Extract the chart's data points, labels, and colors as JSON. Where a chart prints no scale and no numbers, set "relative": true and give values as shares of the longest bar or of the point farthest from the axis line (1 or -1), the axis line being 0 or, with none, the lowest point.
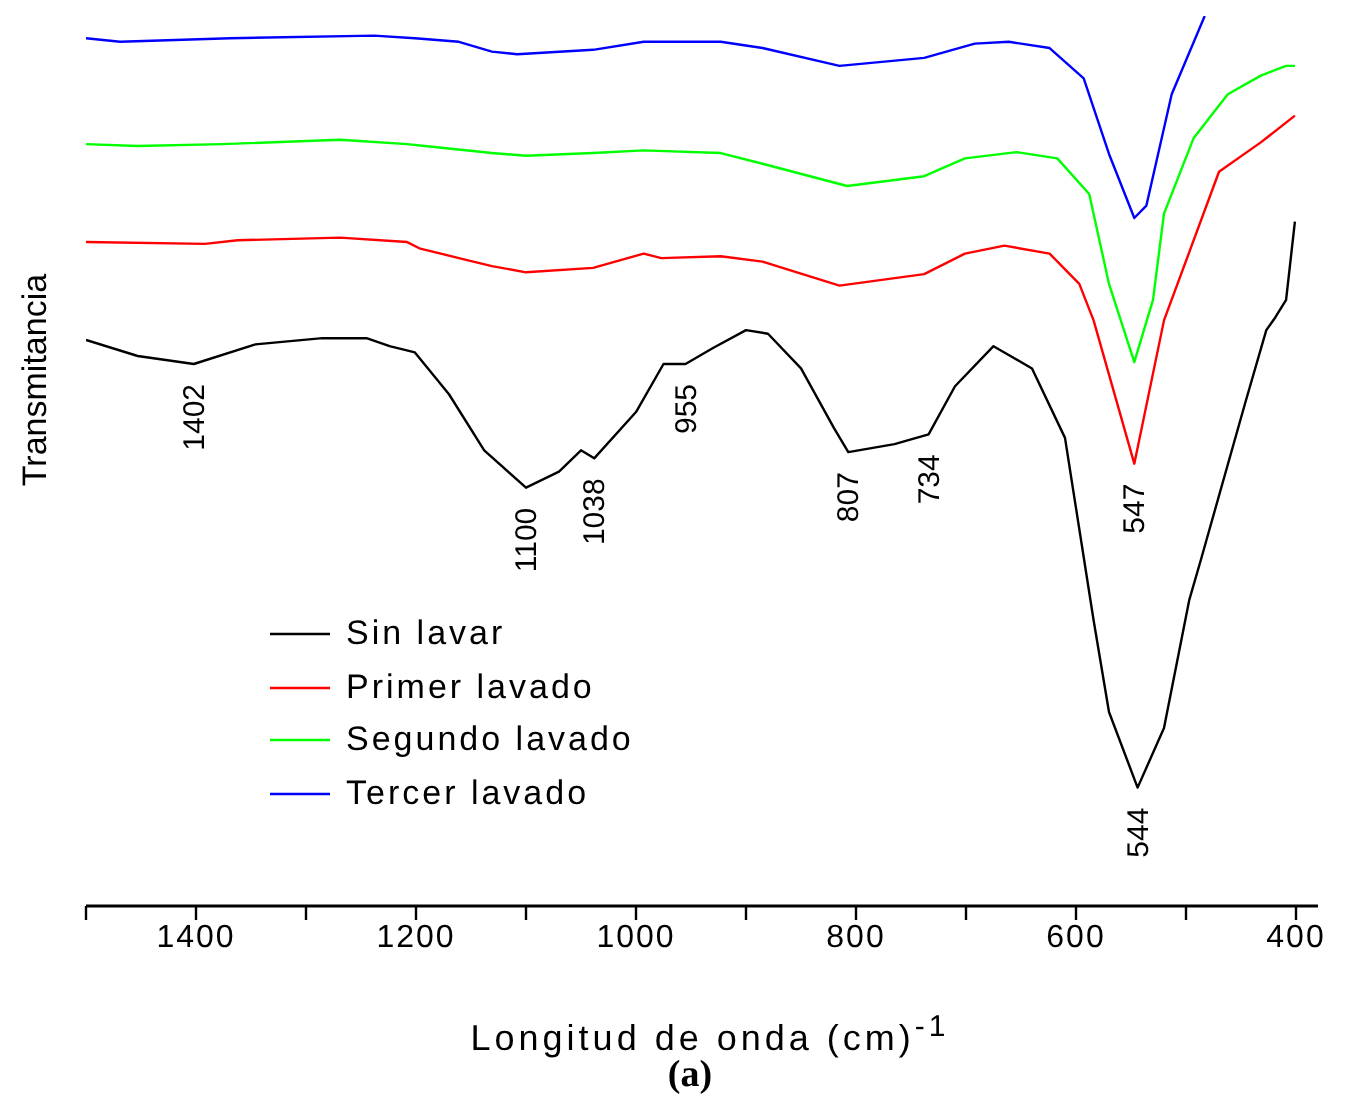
{
  "chart_data": {
    "type": "line",
    "relative": true,
    "xlabel": "Longitud de onda (cm)$^{-1}$",
    "ylabel": "Transmitancia",
    "xlim": [
      1500,
      380
    ],
    "xticks": [
      {
        "value": 1500,
        "label": null
      },
      1400,
      {
        "value": 1300,
        "label": null
      },
      1200,
      {
        "value": 1100,
        "label": null
      },
      1000,
      {
        "value": 900,
        "label": null
      },
      800,
      {
        "value": 700,
        "label": null
      },
      600,
      {
        "value": 500,
        "label": null
      },
      400
    ],
    "grid": false,
    "legend": "bottom left",
    "series": [
      {
        "name": "Sin lavar",
        "color": "#000000",
        "x": [
          1500,
          1453,
          1402,
          1346,
          1285,
          1245,
          1224,
          1201,
          1170,
          1138,
          1100,
          1070,
          1050,
          1038,
          1000,
          975,
          955,
          930,
          900,
          880,
          850,
          820,
          807,
          765,
          734,
          710,
          675,
          640,
          610,
          584,
          570,
          544,
          520,
          497,
          486,
          446,
          427,
          419,
          409,
          401
        ],
        "values": [
          0.636,
          0.618,
          0.609,
          0.631,
          0.638,
          0.638,
          0.629,
          0.622,
          0.575,
          0.512,
          0.47,
          0.488,
          0.512,
          0.503,
          0.555,
          0.609,
          0.609,
          0.627,
          0.647,
          0.643,
          0.604,
          0.537,
          0.51,
          0.519,
          0.53,
          0.584,
          0.629,
          0.604,
          0.526,
          0.321,
          0.218,
          0.133,
          0.2,
          0.344,
          0.391,
          0.566,
          0.647,
          0.661,
          0.681,
          0.769
        ]
      },
      {
        "name": "Primer lavado",
        "color": "#ff0000",
        "x": [
          1500,
          1392,
          1362,
          1269,
          1208,
          1197,
          1161,
          1131,
          1100,
          1039,
          993,
          977,
          923,
          885,
          815,
          738,
          701,
          665,
          624,
          597,
          584,
          547,
          520,
          470,
          432,
          401
        ],
        "values": [
          0.746,
          0.744,
          0.748,
          0.751,
          0.746,
          0.739,
          0.728,
          0.719,
          0.712,
          0.717,
          0.733,
          0.728,
          0.73,
          0.724,
          0.697,
          0.71,
          0.733,
          0.742,
          0.733,
          0.699,
          0.658,
          0.497,
          0.658,
          0.825,
          0.858,
          0.888
        ]
      },
      {
        "name": "Segundo lavado",
        "color": "#00ff00",
        "x": [
          1500,
          1453,
          1376,
          1269,
          1208,
          1192,
          1131,
          1100,
          1039,
          993,
          923,
          885,
          808,
          738,
          701,
          654,
          617,
          588,
          570,
          547,
          530,
          520,
          493,
          462,
          432,
          409,
          401
        ],
        "values": [
          0.856,
          0.854,
          0.856,
          0.861,
          0.856,
          0.854,
          0.846,
          0.843,
          0.846,
          0.849,
          0.846,
          0.834,
          0.809,
          0.82,
          0.84,
          0.847,
          0.84,
          0.8,
          0.699,
          0.611,
          0.681,
          0.778,
          0.863,
          0.912,
          0.933,
          0.944,
          0.944
        ]
      },
      {
        "name": "Tercer lavado",
        "color": "#0000ff",
        "x": [
          1500,
          1469,
          1369,
          1238,
          1201,
          1161,
          1131,
          1108,
          1039,
          993,
          923,
          885,
          815,
          738,
          692,
          661,
          624,
          593,
          570,
          547,
          536,
          513,
          483
        ],
        "values": [
          0.975,
          0.971,
          0.975,
          0.978,
          0.975,
          0.971,
          0.96,
          0.957,
          0.962,
          0.971,
          0.971,
          0.964,
          0.944,
          0.953,
          0.969,
          0.971,
          0.964,
          0.93,
          0.845,
          0.773,
          0.787,
          0.912,
          1
        ]
      }
    ],
    "annotations": [
      {
        "text": "1402",
        "x": 1402,
        "y": 0.609
      },
      {
        "text": "1100",
        "x": 1100,
        "y": 0.47
      },
      {
        "text": "1038",
        "x": 1038,
        "y": 0.503
      },
      {
        "text": "955",
        "x": 955,
        "y": 0.609
      },
      {
        "text": "807",
        "x": 807,
        "y": 0.51
      },
      {
        "text": "734",
        "x": 734,
        "y": 0.53
      },
      {
        "text": "547",
        "x": 547,
        "y": 0.497
      },
      {
        "text": "544",
        "x": 544,
        "y": 0.133
      },
      "(a)"
    ]
  }
}
